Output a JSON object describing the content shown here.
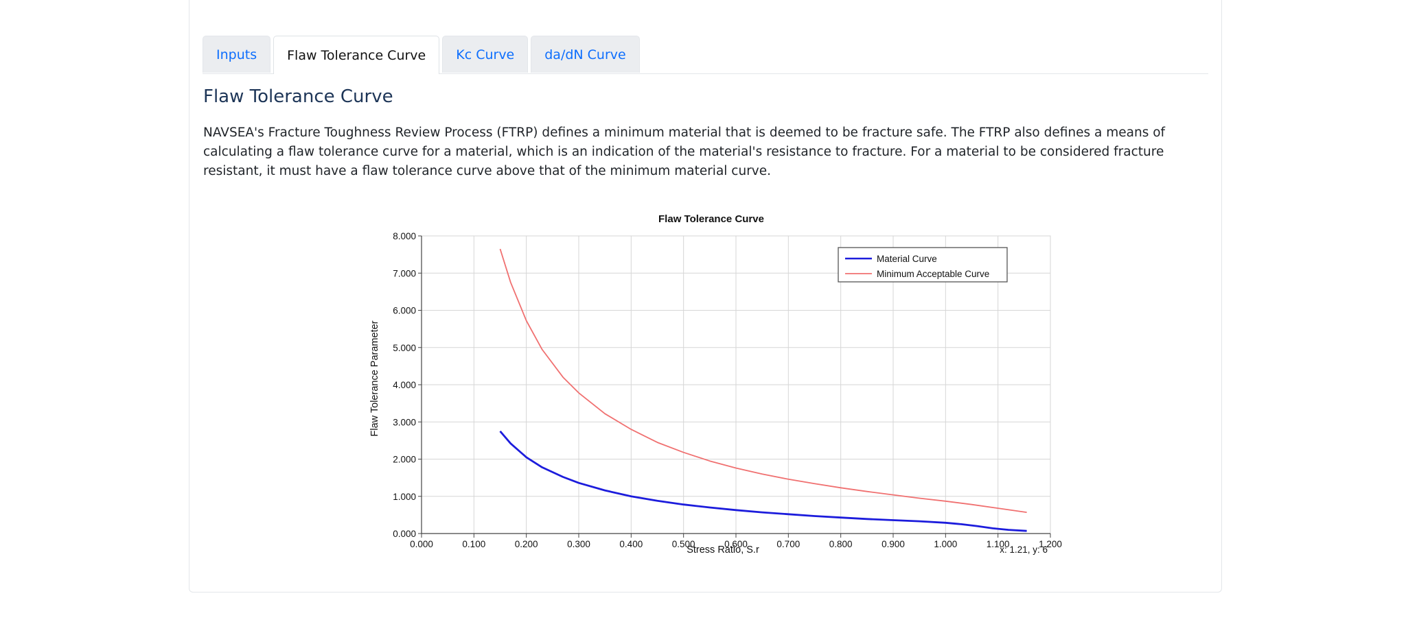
{
  "tabs": [
    {
      "label": "Inputs",
      "active": false
    },
    {
      "label": "Flaw Tolerance Curve",
      "active": true
    },
    {
      "label": "Kc Curve",
      "active": false
    },
    {
      "label": "da/dN Curve",
      "active": false
    }
  ],
  "section": {
    "title": "Flaw Tolerance Curve",
    "description": "NAVSEA's Fracture Toughness Review Process (FTRP) defines a minimum material that is deemed to be fracture safe. The FTRP also defines a means of calculating a flaw tolerance curve for a material, which is an indication of the material's resistance to fracture. For a material to be considered fracture resistant, it must have a flaw tolerance curve above that of the minimum material curve."
  },
  "chart_data": {
    "type": "line",
    "title": "Flaw Tolerance Curve",
    "xlabel": "Stress Ratio, S.r",
    "ylabel": "Flaw Tolerance Parameter",
    "xlim": [
      0,
      1.2
    ],
    "ylim": [
      0,
      8
    ],
    "xticks": [
      "0.000",
      "0.100",
      "0.200",
      "0.300",
      "0.400",
      "0.500",
      "0.600",
      "0.700",
      "0.800",
      "0.900",
      "1.000",
      "1.100",
      "1.200"
    ],
    "yticks": [
      "0.000",
      "1.000",
      "2.000",
      "3.000",
      "4.000",
      "5.000",
      "6.000",
      "7.000",
      "8.000"
    ],
    "grid": true,
    "legend_position": "top-right",
    "cursor_readout": "x: 1.21, y: 6",
    "series": [
      {
        "name": "Material Curve",
        "color": "#1c1cdc",
        "x": [
          0.15,
          0.17,
          0.2,
          0.23,
          0.27,
          0.3,
          0.35,
          0.4,
          0.45,
          0.5,
          0.55,
          0.6,
          0.65,
          0.7,
          0.75,
          0.8,
          0.85,
          0.9,
          0.95,
          1.0,
          1.03,
          1.06,
          1.09,
          1.12,
          1.155
        ],
        "y": [
          2.75,
          2.42,
          2.05,
          1.78,
          1.52,
          1.36,
          1.16,
          1.0,
          0.88,
          0.78,
          0.7,
          0.63,
          0.57,
          0.52,
          0.47,
          0.43,
          0.39,
          0.36,
          0.33,
          0.29,
          0.25,
          0.2,
          0.14,
          0.1,
          0.07
        ]
      },
      {
        "name": "Minimum Acceptable Curve",
        "color": "#f07070",
        "x": [
          0.15,
          0.17,
          0.2,
          0.23,
          0.27,
          0.3,
          0.35,
          0.4,
          0.45,
          0.5,
          0.55,
          0.6,
          0.65,
          0.7,
          0.75,
          0.8,
          0.85,
          0.9,
          0.95,
          1.0,
          1.05,
          1.1,
          1.155
        ],
        "y": [
          7.65,
          6.75,
          5.72,
          4.95,
          4.2,
          3.78,
          3.22,
          2.8,
          2.45,
          2.18,
          1.95,
          1.76,
          1.6,
          1.46,
          1.34,
          1.23,
          1.13,
          1.04,
          0.95,
          0.87,
          0.78,
          0.68,
          0.57
        ]
      }
    ]
  }
}
